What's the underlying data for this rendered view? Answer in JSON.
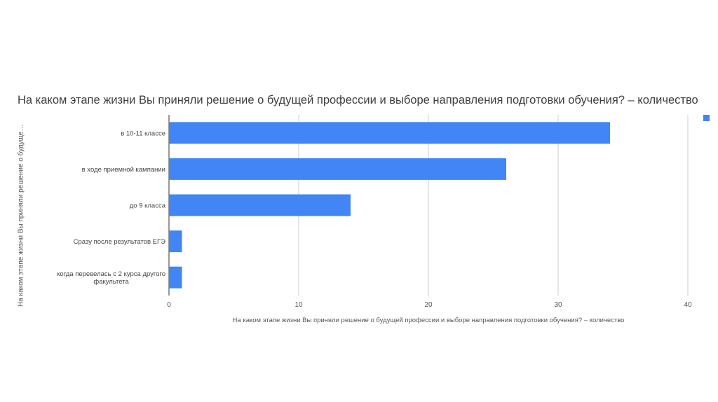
{
  "chart_data": {
    "type": "bar",
    "orientation": "horizontal",
    "title": "На каком этапе жизни Вы приняли решение о будущей профессии и выборе направления подготовки обучения? – количество",
    "xlabel": "На каком этапе жизни Вы приняли решение о будущей профессии и выборе направления подготовки обучения? – количество",
    "ylabel": "На каком этапе жизни Вы приняли решение о будущей пр...",
    "categories": [
      [
        "в 10-11 классе"
      ],
      [
        "в ходе приемной кампании"
      ],
      [
        "до 9 класса"
      ],
      [
        "Сразу после результатов ЕГЭ"
      ],
      [
        "когда перевелась с 2  курса другого",
        "факультета"
      ]
    ],
    "values": [
      34,
      26,
      14,
      1,
      1
    ],
    "xlim": [
      0,
      40
    ],
    "ticks": [
      "0",
      "10",
      "20",
      "30",
      "40"
    ],
    "grid": true,
    "legend": "top-right",
    "bar_color": "#4285f4"
  }
}
